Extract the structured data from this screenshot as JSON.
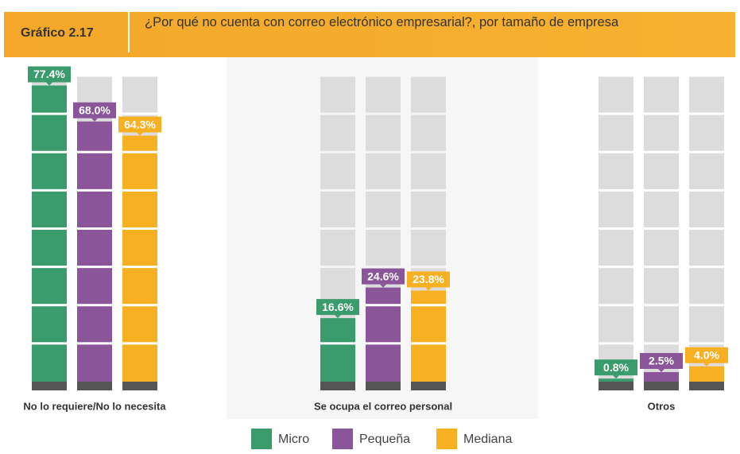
{
  "chart_data": {
    "type": "bar",
    "label": "Gráfico 2.17",
    "title": "¿Por qué no cuenta con correo electrónico empresarial?, por tamaño de empresa",
    "categories": [
      "No lo requiere/No lo necesita",
      "Se ocupa el correo personal",
      "Otros"
    ],
    "series": [
      {
        "name": "Micro",
        "color": "#3a9b6c",
        "values": [
          77.4,
          16.6,
          0.8
        ],
        "value_labels": [
          "77.4%",
          "16.6%",
          "0.8%"
        ]
      },
      {
        "name": "Pequeña",
        "color": "#8a5699",
        "values": [
          68.0,
          24.6,
          2.5
        ],
        "value_labels": [
          "68.0%",
          "24.6%",
          "2.5%"
        ]
      },
      {
        "name": "Mediana",
        "color": "#f8b023",
        "values": [
          64.3,
          23.8,
          4.0
        ],
        "value_labels": [
          "64.3%",
          "23.8%",
          "4.0%"
        ]
      }
    ],
    "ylim": [
      0,
      80
    ]
  }
}
